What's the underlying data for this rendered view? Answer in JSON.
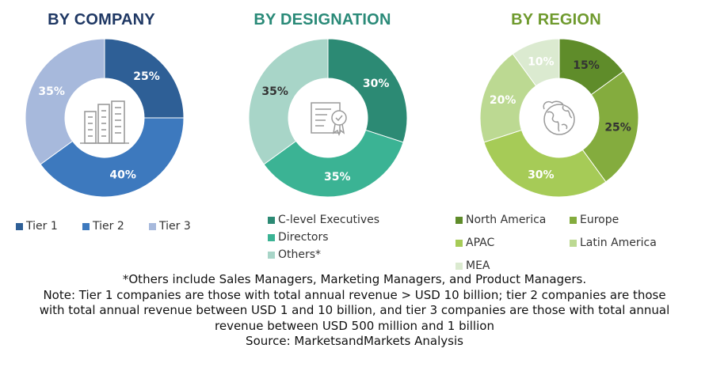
{
  "chart_data": [
    {
      "type": "pie",
      "title": "BY COMPANY",
      "title_color": "#1f3864",
      "categories": [
        "Tier 1",
        "Tier 2",
        "Tier 3"
      ],
      "values": [
        25,
        40,
        35
      ],
      "labels": [
        "25%",
        "40%",
        "35%"
      ],
      "colors": [
        "#2e5f96",
        "#3d79be",
        "#a7b9dc"
      ],
      "label_colors": [
        "#ffffff",
        "#ffffff",
        "#ffffff"
      ],
      "legend_placement": "bottom",
      "start_angle_deg": 0
    },
    {
      "type": "pie",
      "title": "BY DESIGNATION",
      "title_color": "#2a8a78",
      "categories": [
        "C-level Executives",
        "Directors",
        "Others*"
      ],
      "values": [
        30,
        35,
        35
      ],
      "labels": [
        "30%",
        "35%",
        "35%"
      ],
      "colors": [
        "#2c8a74",
        "#3bb394",
        "#a8d5c8"
      ],
      "label_colors": [
        "#ffffff",
        "#ffffff",
        "#333333"
      ],
      "legend_placement": "bottom",
      "start_angle_deg": 0
    },
    {
      "type": "pie",
      "title": "BY REGION",
      "title_color": "#6f9a2e",
      "categories": [
        "North America",
        "Europe",
        "APAC",
        "Latin America",
        "MEA"
      ],
      "values": [
        15,
        25,
        30,
        20,
        10
      ],
      "labels": [
        "15%",
        "25%",
        "30%",
        "20%",
        "10%"
      ],
      "colors": [
        "#5f8c2a",
        "#84ac3e",
        "#a6cb57",
        "#bcd992",
        "#dbead0"
      ],
      "label_colors": [
        "#333333",
        "#333333",
        "#ffffff",
        "#ffffff",
        "#ffffff"
      ],
      "legend_placement": "bottom",
      "start_angle_deg": 0
    }
  ],
  "icons": [
    "buildings-icon",
    "certificate-icon",
    "globe-icon"
  ],
  "notes": {
    "others": "*Others include Sales Managers, Marketing Managers, and Product Managers.",
    "note_line1": "Note: Tier 1 companies are those with total annual revenue > USD 10 billion; tier 2 companies are those",
    "note_line2": "with total annual revenue between USD 1 and 10 billion, and tier 3 companies are those with total annual",
    "note_line3": "revenue between USD 500 million and 1 billion",
    "source": "Source: MarketsandMarkets Analysis"
  }
}
